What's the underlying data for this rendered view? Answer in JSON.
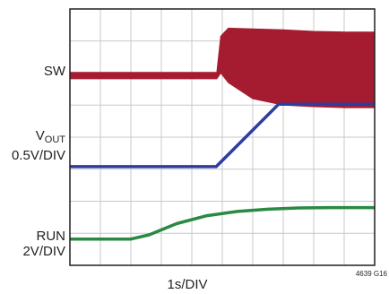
{
  "chart_data": {
    "type": "line",
    "xlabel": "1s/DIV",
    "figure_id": "4639 G16",
    "grid": true,
    "x_divisions": 10,
    "y_divisions": 8,
    "x_unit": "s",
    "x_range": [
      0,
      10
    ],
    "series": [
      {
        "name": "SW",
        "color": "#a51c30",
        "style": "band",
        "label": "SW",
        "scale": "",
        "x": [
          0.0,
          4.82,
          4.95,
          5.2,
          6.0,
          7.0,
          8.0,
          9.0,
          10.0
        ],
        "upper": [
          6.02,
          6.02,
          7.15,
          7.4,
          7.38,
          7.35,
          7.3,
          7.28,
          7.28
        ],
        "lower": [
          5.82,
          5.82,
          6.0,
          5.7,
          5.2,
          5.0,
          4.95,
          4.92,
          4.92
        ]
      },
      {
        "name": "VOUT",
        "color": "#2e3e9e",
        "style": "line",
        "label": "V",
        "label_sub": "OUT",
        "scale": "0.5V/DIV",
        "x": [
          0.0,
          4.8,
          6.85,
          10.0
        ],
        "y": [
          3.08,
          3.08,
          5.03,
          5.03
        ]
      },
      {
        "name": "RUN",
        "color": "#2a8a43",
        "style": "line",
        "label": "RUN",
        "scale": "2V/DIV",
        "x": [
          0.0,
          2.0,
          2.6,
          3.5,
          4.5,
          5.5,
          6.5,
          7.5,
          8.5,
          10.0
        ],
        "y": [
          0.82,
          0.82,
          0.95,
          1.3,
          1.55,
          1.68,
          1.75,
          1.79,
          1.8,
          1.8
        ]
      }
    ]
  }
}
